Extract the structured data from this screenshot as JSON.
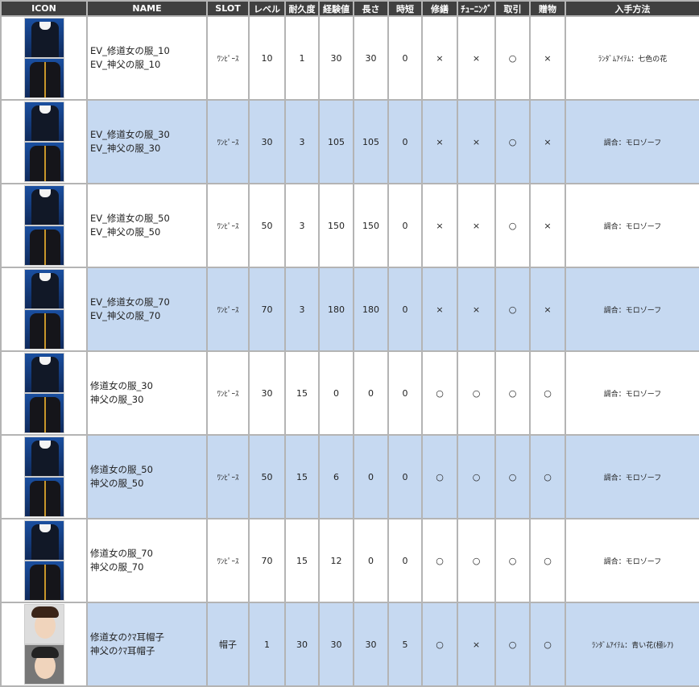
{
  "headers": [
    "ICON",
    "NAME",
    "SLOT",
    "レベル",
    "耐久度",
    "経験値",
    "長さ",
    "時短",
    "修繕",
    "ﾁｭｰﾆﾝｸﾞ",
    "取引",
    "贈物",
    "入手方法"
  ],
  "rows": [
    {
      "icons": [
        "nun-outfit",
        "priest-outfit"
      ],
      "name1": "EV_修道女の服_10",
      "name2": "EV_神父の服_10",
      "slot": "ﾜﾝﾋﾟｰｽ",
      "level": "10",
      "durability": "1",
      "exp": "30",
      "length": "30",
      "timecut": "0",
      "repair": "×",
      "tuning": "×",
      "trade": "○",
      "gift": "×",
      "source": "ﾗﾝﾀﾞﾑｱｲﾃﾑ：七色の花"
    },
    {
      "icons": [
        "nun-outfit",
        "priest-outfit"
      ],
      "name1": "EV_修道女の服_30",
      "name2": "EV_神父の服_30",
      "slot": "ﾜﾝﾋﾟｰｽ",
      "level": "30",
      "durability": "3",
      "exp": "105",
      "length": "105",
      "timecut": "0",
      "repair": "×",
      "tuning": "×",
      "trade": "○",
      "gift": "×",
      "source": "調合：モロゾーフ"
    },
    {
      "icons": [
        "nun-outfit",
        "priest-outfit"
      ],
      "name1": "EV_修道女の服_50",
      "name2": "EV_神父の服_50",
      "slot": "ﾜﾝﾋﾟｰｽ",
      "level": "50",
      "durability": "3",
      "exp": "150",
      "length": "150",
      "timecut": "0",
      "repair": "×",
      "tuning": "×",
      "trade": "○",
      "gift": "×",
      "source": "調合：モロゾーフ"
    },
    {
      "icons": [
        "nun-outfit",
        "priest-outfit"
      ],
      "name1": "EV_修道女の服_70",
      "name2": "EV_神父の服_70",
      "slot": "ﾜﾝﾋﾟｰｽ",
      "level": "70",
      "durability": "3",
      "exp": "180",
      "length": "180",
      "timecut": "0",
      "repair": "×",
      "tuning": "×",
      "trade": "○",
      "gift": "×",
      "source": "調合：モロゾーフ"
    },
    {
      "icons": [
        "nun-outfit",
        "priest-outfit"
      ],
      "name1": "修道女の服_30",
      "name2": "神父の服_30",
      "slot": "ﾜﾝﾋﾟｰｽ",
      "level": "30",
      "durability": "15",
      "exp": "0",
      "length": "0",
      "timecut": "0",
      "repair": "○",
      "tuning": "○",
      "trade": "○",
      "gift": "○",
      "source": "調合：モロゾーフ"
    },
    {
      "icons": [
        "nun-outfit",
        "priest-outfit"
      ],
      "name1": "修道女の服_50",
      "name2": "神父の服_50",
      "slot": "ﾜﾝﾋﾟｰｽ",
      "level": "50",
      "durability": "15",
      "exp": "6",
      "length": "0",
      "timecut": "0",
      "repair": "○",
      "tuning": "○",
      "trade": "○",
      "gift": "○",
      "source": "調合：モロゾーフ"
    },
    {
      "icons": [
        "nun-outfit",
        "priest-outfit"
      ],
      "name1": "修道女の服_70",
      "name2": "神父の服_70",
      "slot": "ﾜﾝﾋﾟｰｽ",
      "level": "70",
      "durability": "15",
      "exp": "12",
      "length": "0",
      "timecut": "0",
      "repair": "○",
      "tuning": "○",
      "trade": "○",
      "gift": "○",
      "source": "調合：モロゾーフ"
    },
    {
      "icons": [
        "nun-bear-ear-hat",
        "priest-bear-ear-hat"
      ],
      "name1": "修道女のｸﾏ耳帽子",
      "name2": "神父のｸﾏ耳帽子",
      "slot": "帽子",
      "level": "1",
      "durability": "30",
      "exp": "30",
      "length": "30",
      "timecut": "5",
      "repair": "○",
      "tuning": "×",
      "trade": "○",
      "gift": "○",
      "source": "ﾗﾝﾀﾞﾑｱｲﾃﾑ：青い花(極ﾚｱ)"
    }
  ]
}
